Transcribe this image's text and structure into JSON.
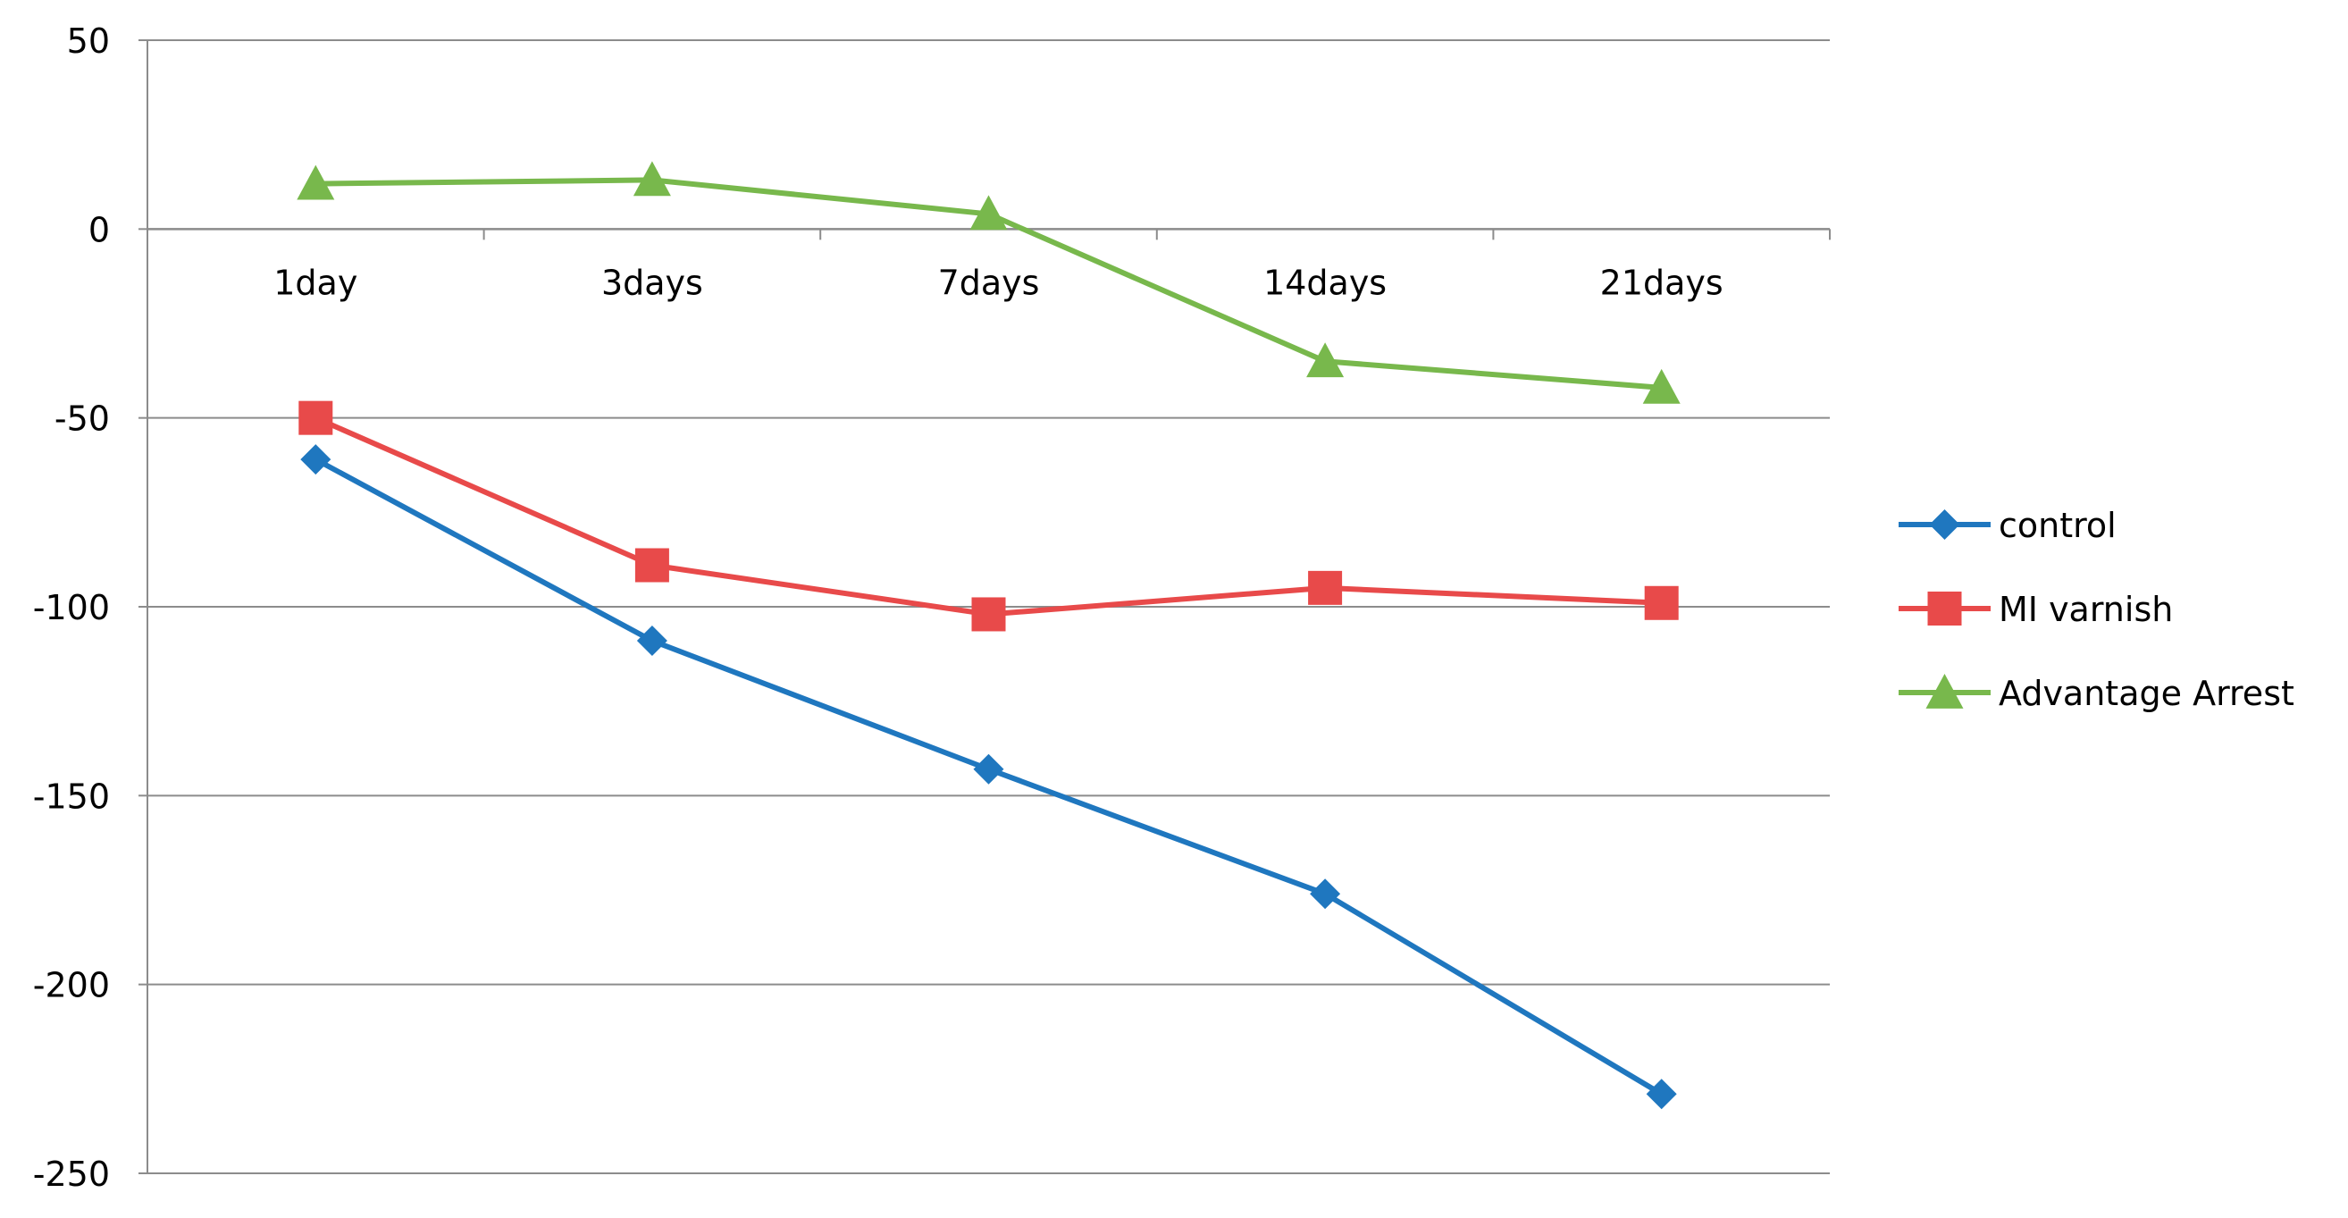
{
  "chart_data": {
    "type": "line",
    "categories": [
      "1day",
      "3days",
      "7days",
      "14days",
      "21days"
    ],
    "series": [
      {
        "name": "control",
        "values": [
          -61,
          -109,
          -143,
          -176,
          -229
        ],
        "color": "#1f77bf",
        "marker": "diamond"
      },
      {
        "name": "MI varnish",
        "values": [
          -50,
          -89,
          -102,
          -95,
          -99
        ],
        "color": "#e84a4a",
        "marker": "square"
      },
      {
        "name": "Advantage Arrest",
        "values": [
          12,
          13,
          4,
          -35,
          -42
        ],
        "color": "#78b84c",
        "marker": "triangle"
      }
    ],
    "ylim": [
      -250,
      50
    ],
    "yticks": [
      50,
      0,
      -50,
      -100,
      -150,
      -200,
      -250
    ],
    "grid": true,
    "legend_position": "right",
    "category_axis_crosses_at": 0
  }
}
